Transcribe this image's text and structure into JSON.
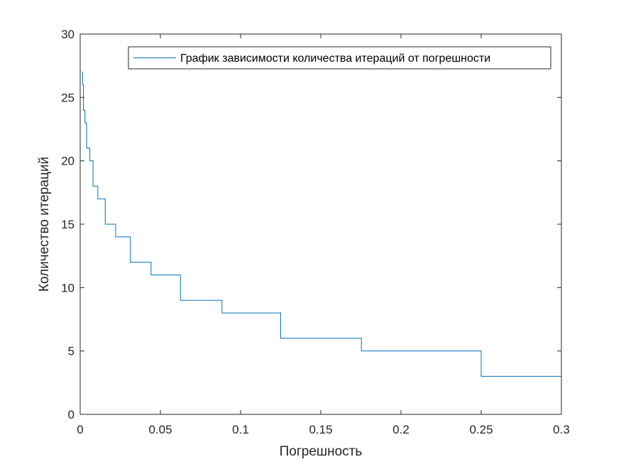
{
  "chart_data": {
    "type": "line",
    "step": true,
    "title": "",
    "xlabel": "Погрешность",
    "ylabel": "Количество итераций",
    "xlim": [
      0,
      0.3
    ],
    "ylim": [
      0,
      30
    ],
    "xticks": [
      0,
      0.05,
      0.1,
      0.15,
      0.2,
      0.25,
      0.3
    ],
    "xtick_labels": [
      "0",
      "0.05",
      "0.1",
      "0.15",
      "0.2",
      "0.25",
      "0.3"
    ],
    "yticks": [
      0,
      5,
      10,
      15,
      20,
      25,
      30
    ],
    "ytick_labels": [
      "0",
      "5",
      "10",
      "15",
      "20",
      "25",
      "30"
    ],
    "grid": false,
    "legend_position": "top-right",
    "series": [
      {
        "name": "График зависимости количества итераций от погрешности",
        "color": "#0072BD",
        "x": [
          0.001,
          0.0015,
          0.002,
          0.003,
          0.004,
          0.006,
          0.008,
          0.011,
          0.0156,
          0.0221,
          0.0313,
          0.0442,
          0.0625,
          0.0884,
          0.125,
          0.1753,
          0.25,
          0.3
        ],
        "y": [
          27,
          26,
          24,
          23,
          21,
          20,
          18,
          17,
          15,
          14,
          12,
          11,
          9,
          8,
          6,
          5,
          3,
          3
        ]
      }
    ]
  }
}
